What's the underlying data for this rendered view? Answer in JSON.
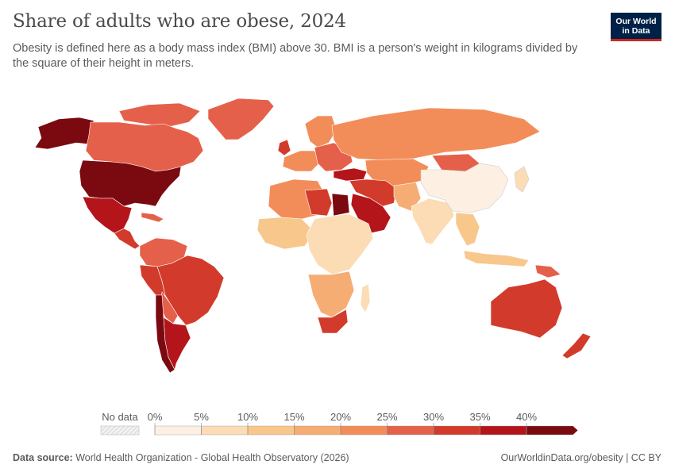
{
  "header": {
    "title": "Share of adults who are obese, 2024",
    "subtitle": "Obesity is defined here as a body mass index (BMI) above 30. BMI is a person's weight in kilograms divided by the square of their height in meters."
  },
  "logo": {
    "line1": "Our World",
    "line2": "in Data"
  },
  "legend": {
    "no_data_label": "No data",
    "ticks": [
      "0%",
      "5%",
      "10%",
      "15%",
      "20%",
      "25%",
      "30%",
      "35%",
      "40%"
    ],
    "colors": [
      "#fdf0e2",
      "#fbdcb5",
      "#f8c78b",
      "#f5ad74",
      "#f28d5a",
      "#e5604a",
      "#d23b2b",
      "#b3151b",
      "#7a0a10"
    ],
    "no_data_color": "#e0e0e0"
  },
  "footer": {
    "source_label": "Data source:",
    "source_text": "World Health Organization - Global Health Observatory (2026)",
    "url": "OurWorldinData.org/obesity",
    "license": "CC BY"
  }
}
